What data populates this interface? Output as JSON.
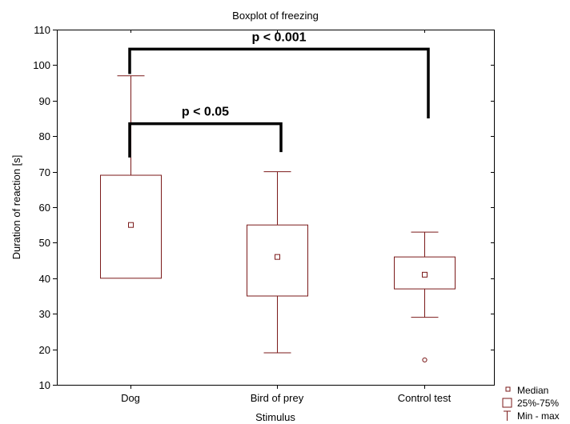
{
  "chart_data": {
    "type": "boxplot",
    "title": "Boxplot of freezing",
    "xlabel": "Stimulus",
    "ylabel": "Duration of reaction [s]",
    "ylim": [
      10,
      110
    ],
    "yticks": [
      10,
      20,
      30,
      40,
      50,
      60,
      70,
      80,
      90,
      100,
      110
    ],
    "categories": [
      "Dog",
      "Bird of prey",
      "Control test"
    ],
    "boxes": [
      {
        "category": "Dog",
        "min": 40,
        "q1": 40,
        "median": 55,
        "q3": 69,
        "max": 97,
        "outliers": []
      },
      {
        "category": "Bird of prey",
        "min": 19,
        "q1": 35,
        "median": 46,
        "q3": 55,
        "max": 70,
        "outliers": []
      },
      {
        "category": "Control test",
        "min": 29,
        "q1": 37,
        "median": 41,
        "q3": 46,
        "max": 53,
        "outliers": [
          17
        ]
      }
    ],
    "significance": [
      {
        "from": "Dog",
        "to": "Control test",
        "label": "p < 0.001",
        "bracket_y": 104.5,
        "left_end": 97.5,
        "right_end": 85
      },
      {
        "from": "Dog",
        "to": "Bird of prey",
        "label": "p < 0.05",
        "bracket_y": 83.5,
        "left_end": 74,
        "right_end": 75.5
      }
    ],
    "legend": {
      "placement": "bottom-right",
      "entries": [
        "Median",
        "25%-75%",
        "Min - max"
      ]
    },
    "colors": {
      "box": "#7b1a1a",
      "bracket": "#000000",
      "frame": "#000000"
    }
  }
}
